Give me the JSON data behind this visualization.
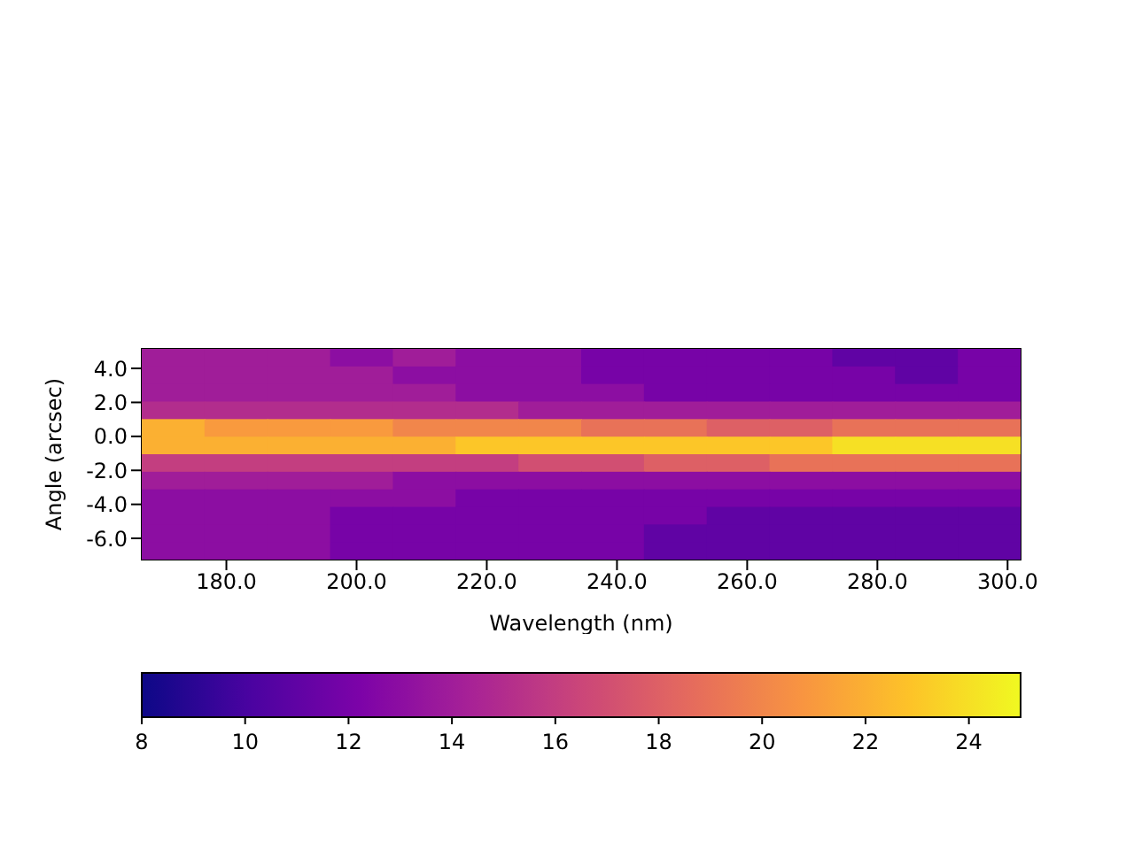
{
  "chart_data": {
    "type": "heatmap",
    "xlabel": "Wavelength (nm)",
    "ylabel": "Angle (arcsec)",
    "xlim": [
      167,
      302
    ],
    "ylim": [
      -7.25,
      5.15
    ],
    "xticks": [
      {
        "value": 180,
        "label": "180.0"
      },
      {
        "value": 200,
        "label": "200.0"
      },
      {
        "value": 220,
        "label": "220.0"
      },
      {
        "value": 240,
        "label": "240.0"
      },
      {
        "value": 260,
        "label": "260.0"
      },
      {
        "value": 280,
        "label": "280.0"
      },
      {
        "value": 300,
        "label": "300.0"
      }
    ],
    "yticks": [
      {
        "value": 4,
        "label": "4.0"
      },
      {
        "value": 2,
        "label": "2.0"
      },
      {
        "value": 0,
        "label": "0.0"
      },
      {
        "value": -2,
        "label": "-2.0"
      },
      {
        "value": -4,
        "label": "-4.0"
      },
      {
        "value": -6,
        "label": "-6.0"
      }
    ],
    "clim": [
      8,
      25
    ],
    "cticks": [
      8,
      10,
      12,
      14,
      16,
      18,
      20,
      22,
      24
    ],
    "cells": [
      [
        14,
        14,
        14,
        13,
        14,
        13,
        13,
        12,
        12,
        12,
        12,
        11,
        11,
        12
      ],
      [
        14,
        14,
        14,
        14,
        13,
        13,
        13,
        12,
        12,
        12,
        12,
        12,
        11,
        12
      ],
      [
        14,
        14,
        14,
        14,
        14,
        13,
        13,
        13,
        12,
        12,
        12,
        12,
        12,
        12
      ],
      [
        15,
        15,
        15,
        15,
        15,
        15,
        14,
        14,
        14,
        14,
        14,
        14,
        14,
        14
      ],
      [
        22,
        21,
        21,
        21,
        20,
        20,
        20,
        19,
        19,
        18,
        18,
        19,
        19,
        19
      ],
      [
        22,
        22,
        22,
        22,
        22,
        23,
        23,
        23,
        23,
        23,
        23,
        24,
        24,
        24
      ],
      [
        16,
        16,
        16,
        16,
        16,
        16,
        17,
        17,
        18,
        18,
        19,
        19,
        19,
        19
      ],
      [
        14,
        14,
        14,
        14,
        13,
        13,
        13,
        13,
        13,
        13,
        13,
        13,
        13,
        13
      ],
      [
        13,
        13,
        13,
        13,
        13,
        12,
        12,
        12,
        12,
        12,
        12,
        12,
        12,
        12
      ],
      [
        13,
        13,
        13,
        12,
        12,
        12,
        12,
        12,
        12,
        11,
        11,
        11,
        11,
        11
      ],
      [
        13,
        13,
        13,
        12,
        12,
        12,
        12,
        12,
        11,
        11,
        11,
        11,
        11,
        11
      ],
      [
        13,
        13,
        13,
        12,
        12,
        12,
        12,
        12,
        11,
        11,
        11,
        11,
        11,
        11
      ]
    ]
  }
}
